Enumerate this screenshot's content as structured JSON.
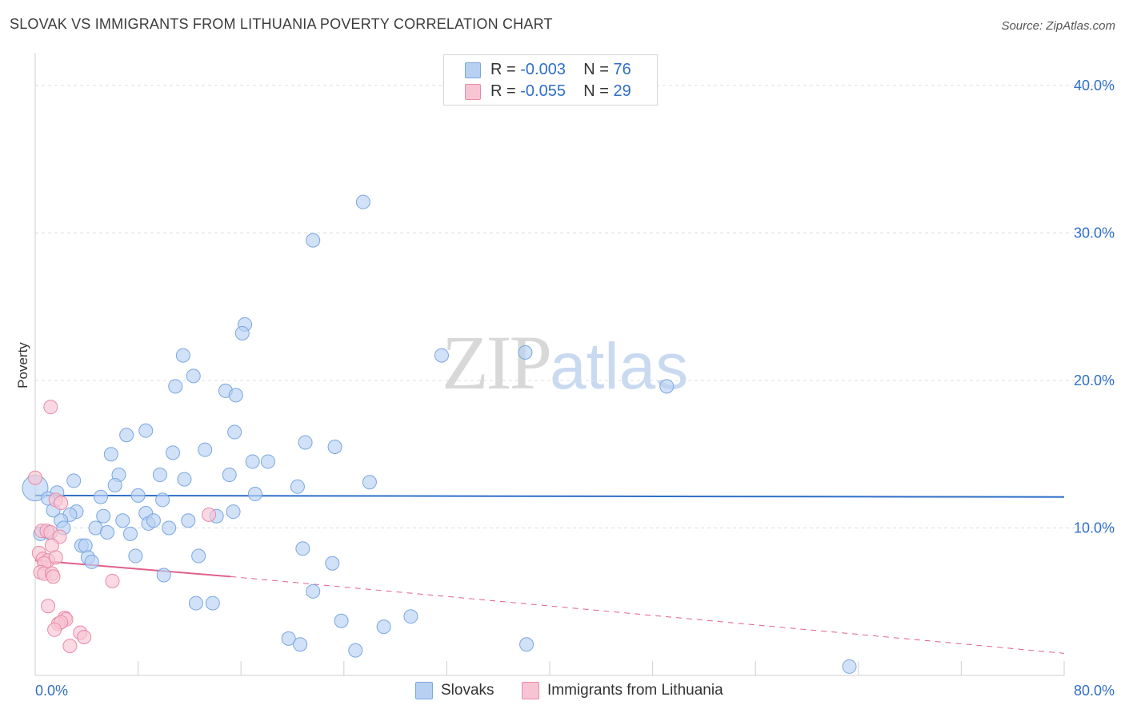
{
  "header": {
    "title": "SLOVAK VS IMMIGRANTS FROM LITHUANIA POVERTY CORRELATION CHART",
    "source": "Source: ZipAtlas.com"
  },
  "watermark": {
    "zip": "ZIP",
    "atlas": "atlas"
  },
  "legend_top": [
    {
      "r_label": "R = ",
      "r_value": "-0.003",
      "n_label": "N = ",
      "n_value": "76",
      "color": "#b8d1f2"
    },
    {
      "r_label": "R = ",
      "r_value": "-0.055",
      "n_label": "N = ",
      "n_value": "29",
      "color": "#f7c4d4"
    }
  ],
  "legend_bottom": [
    {
      "label": "Slovaks",
      "color": "#b8d1f2"
    },
    {
      "label": "Immigrants from Lithuania",
      "color": "#f7c4d4"
    }
  ],
  "colors": {
    "slovak_fill": "#b8d1f2",
    "slovak_stroke": "#7aa7e0",
    "slovak_line": "#2f6fc9",
    "lith_fill": "#f7c4d4",
    "lith_stroke": "#e88aa8",
    "lith_line": "#e0608c",
    "axis_text": "#2f6fc9",
    "grid": "#dcdcdc"
  },
  "chart_data": {
    "type": "scatter",
    "ylabel": "Poverty",
    "xlim": [
      0,
      80
    ],
    "ylim": [
      0,
      42
    ],
    "x_tick_labels": [
      {
        "value": 0,
        "label": "0.0%"
      },
      {
        "value": 80,
        "label": "80.0%"
      }
    ],
    "y_tick_labels": [
      {
        "value": 10,
        "label": "10.0%"
      },
      {
        "value": 20,
        "label": "20.0%"
      },
      {
        "value": 30,
        "label": "30.0%"
      },
      {
        "value": 40,
        "label": "40.0%"
      }
    ],
    "grid": true,
    "series": [
      {
        "name": "Slovaks",
        "points": [
          [
            25.5,
            32.1
          ],
          [
            21.6,
            29.5
          ],
          [
            16.3,
            23.8
          ],
          [
            16.1,
            23.2
          ],
          [
            31.6,
            21.7
          ],
          [
            38.1,
            21.9
          ],
          [
            11.5,
            21.7
          ],
          [
            12.3,
            20.3
          ],
          [
            10.9,
            19.6
          ],
          [
            14.8,
            19.3
          ],
          [
            15.6,
            19.0
          ],
          [
            49.1,
            19.6
          ],
          [
            8.6,
            16.6
          ],
          [
            7.1,
            16.3
          ],
          [
            15.5,
            16.5
          ],
          [
            21.0,
            15.8
          ],
          [
            23.3,
            15.5
          ],
          [
            5.9,
            15.0
          ],
          [
            10.7,
            15.1
          ],
          [
            13.2,
            15.3
          ],
          [
            16.9,
            14.5
          ],
          [
            18.1,
            14.5
          ],
          [
            6.5,
            13.6
          ],
          [
            9.7,
            13.6
          ],
          [
            11.6,
            13.3
          ],
          [
            15.1,
            13.6
          ],
          [
            3.0,
            13.2
          ],
          [
            6.2,
            12.9
          ],
          [
            20.4,
            12.8
          ],
          [
            26.0,
            13.1
          ],
          [
            0.0,
            12.7
          ],
          [
            1.7,
            12.4
          ],
          [
            1.0,
            12.0
          ],
          [
            5.1,
            12.1
          ],
          [
            8.0,
            12.2
          ],
          [
            9.9,
            11.9
          ],
          [
            17.1,
            12.3
          ],
          [
            1.4,
            11.2
          ],
          [
            3.2,
            11.1
          ],
          [
            2.7,
            10.9
          ],
          [
            5.3,
            10.8
          ],
          [
            8.6,
            11.0
          ],
          [
            11.9,
            10.5
          ],
          [
            14.1,
            10.8
          ],
          [
            15.4,
            11.1
          ],
          [
            2.0,
            10.5
          ],
          [
            6.8,
            10.5
          ],
          [
            8.8,
            10.3
          ],
          [
            9.2,
            10.5
          ],
          [
            2.2,
            10.0
          ],
          [
            4.7,
            10.0
          ],
          [
            5.6,
            9.7
          ],
          [
            7.4,
            9.6
          ],
          [
            10.4,
            10.0
          ],
          [
            0.4,
            9.6
          ],
          [
            1.0,
            9.7
          ],
          [
            3.6,
            8.8
          ],
          [
            3.9,
            8.8
          ],
          [
            20.8,
            8.6
          ],
          [
            4.1,
            8.0
          ],
          [
            7.8,
            8.1
          ],
          [
            12.7,
            8.1
          ],
          [
            23.1,
            7.6
          ],
          [
            4.4,
            7.7
          ],
          [
            10.0,
            6.8
          ],
          [
            21.6,
            5.7
          ],
          [
            12.5,
            4.9
          ],
          [
            13.8,
            4.9
          ],
          [
            29.2,
            4.0
          ],
          [
            23.8,
            3.7
          ],
          [
            27.1,
            3.3
          ],
          [
            19.7,
            2.5
          ],
          [
            20.6,
            2.1
          ],
          [
            38.2,
            2.1
          ],
          [
            24.9,
            1.7
          ],
          [
            63.3,
            0.6
          ]
        ]
      },
      {
        "name": "Immigrants from Lithuania",
        "points": [
          [
            1.2,
            18.2
          ],
          [
            0.0,
            13.4
          ],
          [
            1.6,
            11.9
          ],
          [
            2.0,
            11.7
          ],
          [
            13.5,
            10.9
          ],
          [
            0.5,
            9.8
          ],
          [
            0.9,
            9.8
          ],
          [
            1.2,
            9.7
          ],
          [
            1.9,
            9.4
          ],
          [
            1.3,
            8.8
          ],
          [
            0.3,
            8.3
          ],
          [
            0.6,
            7.9
          ],
          [
            1.0,
            7.8
          ],
          [
            1.6,
            8.0
          ],
          [
            0.7,
            7.6
          ],
          [
            0.4,
            7.0
          ],
          [
            0.7,
            6.9
          ],
          [
            1.3,
            6.9
          ],
          [
            1.4,
            6.7
          ],
          [
            6.0,
            6.4
          ],
          [
            1.0,
            4.7
          ],
          [
            2.3,
            3.9
          ],
          [
            2.4,
            3.8
          ],
          [
            1.8,
            3.5
          ],
          [
            2.0,
            3.6
          ],
          [
            1.5,
            3.1
          ],
          [
            3.5,
            2.9
          ],
          [
            3.8,
            2.6
          ],
          [
            2.7,
            2.0
          ]
        ]
      }
    ],
    "trend_lines": [
      {
        "series": "Slovaks",
        "x": [
          0,
          80
        ],
        "y": [
          12.2,
          12.1
        ],
        "style": "solid"
      },
      {
        "series": "Immigrants from Lithuania",
        "x": [
          0,
          15.2
        ],
        "y": [
          7.8,
          6.7
        ],
        "style": "solid"
      },
      {
        "series": "Immigrants from Lithuania",
        "x": [
          15.2,
          80
        ],
        "y": [
          6.7,
          1.5
        ],
        "style": "dashed"
      }
    ]
  }
}
